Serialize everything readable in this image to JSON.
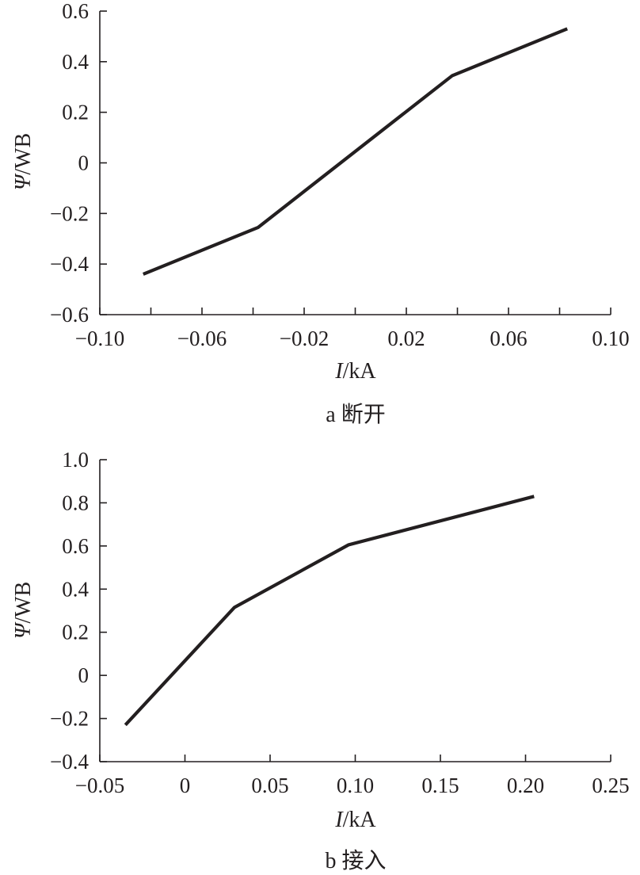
{
  "chart_data": [
    {
      "type": "line",
      "caption": "a 断开",
      "xlabel_var": "I",
      "xlabel_unit": "/kA",
      "ylabel_var": "Ψ",
      "ylabel_unit": "/WB",
      "xlim": [
        -0.1,
        0.1
      ],
      "ylim": [
        -0.6,
        0.6
      ],
      "x_ticks": [
        -0.1,
        -0.06,
        -0.02,
        0.02,
        0.06,
        0.1
      ],
      "x_minor_ticks": [
        -0.08,
        -0.04,
        0.0,
        0.04,
        0.08
      ],
      "x_tick_labels": [
        "−0.10",
        "−0.06",
        "−0.02",
        "0.02",
        "0.06",
        "0.10"
      ],
      "y_ticks": [
        -0.6,
        -0.4,
        -0.2,
        0,
        0.2,
        0.4,
        0.6
      ],
      "y_tick_labels": [
        "−0.6",
        "−0.4",
        "−0.2",
        "0",
        "0.2",
        "0.4",
        "0.6"
      ],
      "series": [
        {
          "x": [
            -0.083,
            -0.038,
            0.038,
            0.083
          ],
          "y": [
            -0.44,
            -0.255,
            0.345,
            0.53
          ]
        }
      ]
    },
    {
      "type": "line",
      "caption": "b 接入",
      "xlabel_var": "I",
      "xlabel_unit": "/kA",
      "ylabel_var": "Ψ",
      "ylabel_unit": "/WB",
      "xlim": [
        -0.05,
        0.25
      ],
      "ylim": [
        -0.4,
        1.0
      ],
      "x_ticks": [
        -0.05,
        0,
        0.05,
        0.1,
        0.15,
        0.2,
        0.25
      ],
      "x_tick_labels": [
        "−0.05",
        "0",
        "0.05",
        "0.10",
        "0.15",
        "0.20",
        "0.25"
      ],
      "y_ticks": [
        -0.4,
        -0.2,
        0,
        0.2,
        0.4,
        0.6,
        0.8,
        1.0
      ],
      "y_tick_labels": [
        "−0.4",
        "−0.2",
        "0",
        "0.2",
        "0.4",
        "0.6",
        "0.8",
        "1.0"
      ],
      "series": [
        {
          "x": [
            -0.035,
            0.029,
            0.096,
            0.205
          ],
          "y": [
            -0.23,
            0.315,
            0.605,
            0.83
          ]
        }
      ]
    }
  ]
}
